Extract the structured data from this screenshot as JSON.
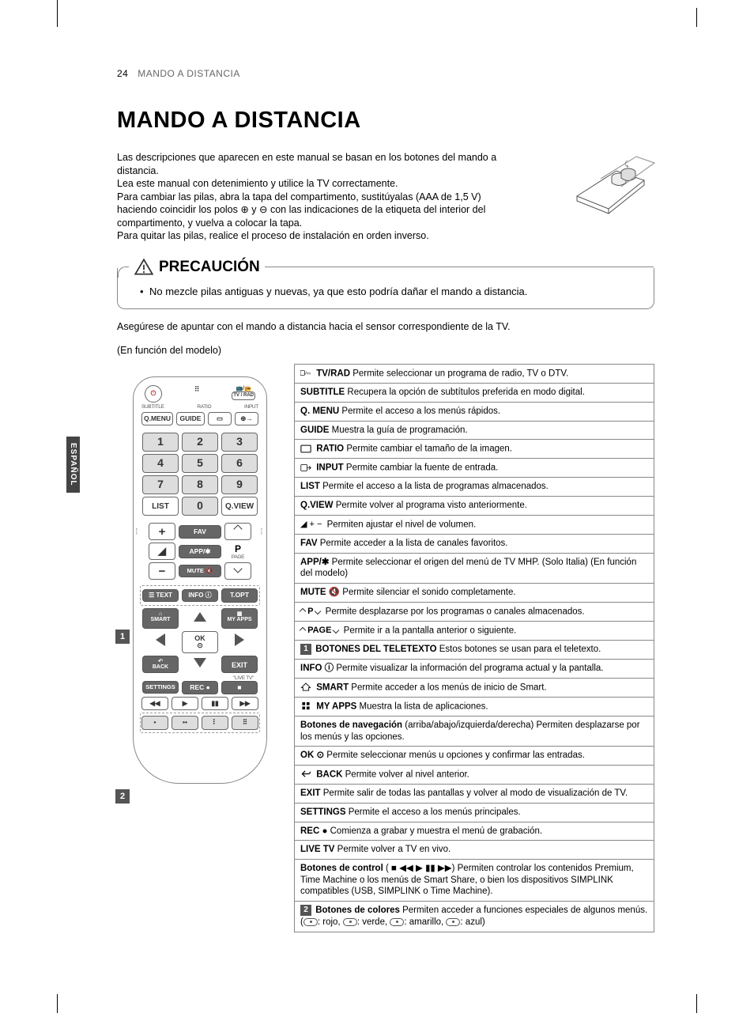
{
  "page": {
    "number": "24",
    "header": "MANDO A DISTANCIA"
  },
  "title": "MANDO A DISTANCIA",
  "intro_lines": [
    "Las descripciones que aparecen en este manual se basan en los botones del mando a distancia.",
    "Lea este manual con detenimiento y utilice la TV correctamente.",
    "Para cambiar las pilas, abra la tapa del compartimento, sustitúyalas (AAA de 1,5 V) haciendo coincidir los polos ⊕ y ⊖ con las indicaciones de la etiqueta del interior del compartimento, y vuelva a colocar la tapa.",
    "Para quitar las pilas, realice el proceso de instalación en orden inverso."
  ],
  "precaution": {
    "title": "PRECAUCIÓN",
    "items": [
      "No mezcle pilas antiguas y nuevas, ya que esto podría dañar el mando a distancia."
    ]
  },
  "after_box": "Asegúrese de apuntar con el mando a distancia hacia el sensor correspondiente de la TV.",
  "model_note": "(En función del modelo)",
  "side_tab": "ESPAÑOL",
  "remote": {
    "top_labels": {
      "subtitle": "SUBTITLE",
      "ratio": "RATIO",
      "input": "INPUT",
      "tvrad": "TV / RAD"
    },
    "small_btns": {
      "qmenu": "Q.MENU",
      "guide": "GUIDE"
    },
    "numbers": [
      "1",
      "2",
      "3",
      "4",
      "5",
      "6",
      "7",
      "8",
      "9",
      "0"
    ],
    "list": "LIST",
    "qview": "Q.VIEW",
    "fav": "FAV",
    "app": "APP/✱",
    "page": "PAGE",
    "p": "P",
    "mute": "MUTE 🔇",
    "text": "TEXT",
    "info": "INFO ⓘ",
    "topt": "T.OPT",
    "smart": "SMART",
    "myapps": "MY APPS",
    "ok": "OK",
    "back": "BACK",
    "exit": "EXIT",
    "livetv": "\"LIVE TV\"",
    "settings": "SETTINGS",
    "rec": "REC ●"
  },
  "callouts": {
    "c1": "1",
    "c2": "2"
  },
  "descriptions": [
    {
      "icon": "tvrad",
      "bold": "TV/RAD",
      "text": "  Permite seleccionar un programa de radio, TV o DTV."
    },
    {
      "bold": "SUBTITLE",
      "text": "   Recupera la opción de subtítulos preferida en modo digital."
    },
    {
      "bold": "Q. MENU",
      "text": "   Permite el acceso a los menús rápidos."
    },
    {
      "bold": "GUIDE",
      "text": "   Muestra la guía de programación."
    },
    {
      "icon": "ratio",
      "bold": "RATIO",
      "text": "   Permite cambiar el tamaño de la imagen."
    },
    {
      "icon": "input",
      "bold": "INPUT",
      "text": "   Permite cambiar la fuente de entrada."
    },
    {
      "bold": "LIST",
      "text": "   Permite el acceso a la lista de programas almacenados."
    },
    {
      "bold": "Q.VIEW",
      "text": "   Permite volver al programa visto anteriormente."
    },
    {
      "icon": "vol",
      "bold": "",
      "text": "   Permiten ajustar el nivel de volumen."
    },
    {
      "bold": "FAV",
      "text": "   Permite acceder a la lista de canales favoritos."
    },
    {
      "bold": "APP/✱",
      "text": "   Permite seleccionar el origen del menú de TV MHP. (Solo Italia) (En función del modelo)"
    },
    {
      "bold": "MUTE 🔇",
      "text": "   Permite silenciar el sonido completamente."
    },
    {
      "icon": "p",
      "bold": "",
      "text": "   Permite desplazarse por los programas o canales almacenados."
    },
    {
      "icon": "page",
      "bold": "",
      "text": "   Permite ir a la pantalla anterior o siguiente."
    },
    {
      "badge": "1",
      "bold": "BOTONES DEL TELETEXTO",
      "text": " Estos botones se usan para el teletexto."
    },
    {
      "bold": "INFO ⓘ",
      "text": "   Permite visualizar la información del programa actual y la pantalla."
    },
    {
      "icon": "home",
      "bold": "SMART",
      "text": " Permite acceder a los menús de inicio de Smart."
    },
    {
      "icon": "grid",
      "bold": "MY APPS",
      "text": "   Muestra la lista de aplicaciones."
    },
    {
      "bold": "Botones de navegación",
      "text": " (arriba/abajo/izquierda/derecha) Permiten desplazarse por los menús y las opciones."
    },
    {
      "bold": "OK ⊙",
      "text": " Permite seleccionar menús u opciones y confirmar las entradas."
    },
    {
      "icon": "back",
      "bold": "BACK",
      "text": " Permite volver al nivel anterior."
    },
    {
      "bold": "EXIT",
      "text": "   Permite salir de todas las pantallas y volver al modo de visualización de TV."
    },
    {
      "bold": "SETTINGS",
      "text": "   Permite el acceso a los menús principales."
    },
    {
      "bold": "REC ●",
      "text": "   Comienza a grabar y muestra el menú de grabación."
    },
    {
      "bold": "LIVE TV",
      "text": "   Permite volver a TV en vivo."
    },
    {
      "bold": "Botones de control",
      "text": " ( ■  ◀◀  ▶  ▮▮  ▶▶) Permiten controlar los contenidos Premium, Time Machine o los menús de Smart Share, o bien los dispositivos SIMPLINK compatibles (USB, SIMPLINK o Time Machine)."
    },
    {
      "badge": "2",
      "bold": "Botones de colores",
      "text": "   Permiten acceder a funciones especiales de algunos menús. (🟥: rojo, 🟩: verde, 🟨: amarillo, 🟦: azul)",
      "pills": true
    }
  ]
}
